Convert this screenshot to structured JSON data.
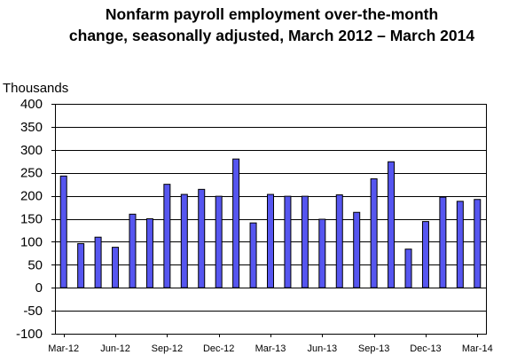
{
  "chart_data": {
    "type": "bar",
    "title": "Nonfarm payroll employment over-the-month",
    "subtitle": "change, seasonally adjusted, March 2012 – March 2014",
    "ylabel": "Thousands",
    "xlabel": "",
    "ylim": [
      -100,
      400
    ],
    "yticks": [
      -100,
      -50,
      0,
      50,
      100,
      150,
      200,
      250,
      300,
      350,
      400
    ],
    "grid": true,
    "legend": "none",
    "bar_color": "#5656f0",
    "bar_edge_color": "#000000",
    "categories": [
      "Mar-12",
      "Apr-12",
      "May-12",
      "Jun-12",
      "Jul-12",
      "Aug-12",
      "Sep-12",
      "Oct-12",
      "Nov-12",
      "Dec-12",
      "Jan-13",
      "Feb-13",
      "Mar-13",
      "Apr-13",
      "May-13",
      "Jun-13",
      "Jul-13",
      "Aug-13",
      "Sep-13",
      "Oct-13",
      "Nov-13",
      "Dec-13",
      "Jan-14",
      "Feb-14",
      "Mar-14"
    ],
    "tick_labels": [
      "Mar-12",
      "Jun-12",
      "Sep-12",
      "Dec-12",
      "Mar-13",
      "Jun-13",
      "Sep-13",
      "Dec-13",
      "Mar-14"
    ],
    "values": [
      243,
      96,
      110,
      88,
      160,
      150,
      225,
      203,
      214,
      199,
      280,
      141,
      203,
      199,
      199,
      149,
      202,
      164,
      237,
      274,
      84,
      144,
      197,
      188,
      192
    ]
  }
}
